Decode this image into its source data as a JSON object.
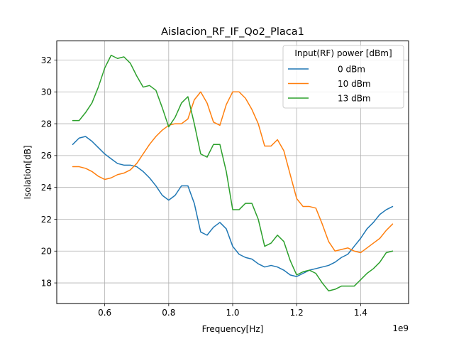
{
  "chart_data": {
    "type": "line",
    "title": "Aislacion_RF_IF_Qo2_Placa1",
    "xlabel": "Frequency[Hz]",
    "ylabel": "Isolation[dB]",
    "x_scale_note": "1e9",
    "xlim": [
      0.45,
      1.55
    ],
    "ylim": [
      16.7,
      33.2
    ],
    "x_ticks": [
      0.6,
      0.8,
      1.0,
      1.2,
      1.4
    ],
    "x_tick_labels": [
      "0.6",
      "0.8",
      "1.0",
      "1.2",
      "1.4"
    ],
    "y_ticks": [
      18,
      20,
      22,
      24,
      26,
      28,
      30,
      32
    ],
    "y_tick_labels": [
      "18",
      "20",
      "22",
      "24",
      "26",
      "28",
      "30",
      "32"
    ],
    "grid": true,
    "legend": {
      "title": "Input(RF) power [dBm]",
      "placement": "upper right"
    },
    "series": [
      {
        "name": "0 dBm",
        "color": "#1f77b4",
        "x": [
          0.5,
          0.52,
          0.54,
          0.56,
          0.58,
          0.6,
          0.62,
          0.64,
          0.66,
          0.68,
          0.7,
          0.72,
          0.74,
          0.76,
          0.78,
          0.8,
          0.82,
          0.84,
          0.86,
          0.88,
          0.9,
          0.92,
          0.94,
          0.96,
          0.98,
          1.0,
          1.02,
          1.04,
          1.06,
          1.08,
          1.1,
          1.12,
          1.14,
          1.16,
          1.18,
          1.2,
          1.22,
          1.24,
          1.26,
          1.28,
          1.3,
          1.32,
          1.34,
          1.36,
          1.38,
          1.4,
          1.42,
          1.44,
          1.46,
          1.48,
          1.5
        ],
        "y": [
          26.7,
          27.1,
          27.2,
          26.9,
          26.5,
          26.1,
          25.8,
          25.5,
          25.4,
          25.4,
          25.3,
          25.0,
          24.6,
          24.1,
          23.5,
          23.2,
          23.5,
          24.1,
          24.1,
          23.0,
          21.2,
          21.0,
          21.5,
          21.8,
          21.4,
          20.3,
          19.8,
          19.6,
          19.5,
          19.2,
          19.0,
          19.1,
          19.0,
          18.8,
          18.5,
          18.4,
          18.6,
          18.8,
          18.9,
          19.0,
          19.1,
          19.3,
          19.6,
          19.8,
          20.3,
          20.8,
          21.4,
          21.8,
          22.3,
          22.6,
          22.8
        ]
      },
      {
        "name": "10 dBm",
        "color": "#ff7f0e",
        "x": [
          0.5,
          0.52,
          0.54,
          0.56,
          0.58,
          0.6,
          0.62,
          0.64,
          0.66,
          0.68,
          0.7,
          0.72,
          0.74,
          0.76,
          0.78,
          0.8,
          0.82,
          0.84,
          0.86,
          0.88,
          0.9,
          0.92,
          0.94,
          0.96,
          0.98,
          1.0,
          1.02,
          1.04,
          1.06,
          1.08,
          1.1,
          1.12,
          1.14,
          1.16,
          1.18,
          1.2,
          1.22,
          1.24,
          1.26,
          1.28,
          1.3,
          1.32,
          1.34,
          1.36,
          1.38,
          1.4,
          1.42,
          1.44,
          1.46,
          1.48,
          1.5
        ],
        "y": [
          25.3,
          25.3,
          25.2,
          25.0,
          24.7,
          24.5,
          24.6,
          24.8,
          24.9,
          25.1,
          25.5,
          26.1,
          26.7,
          27.2,
          27.6,
          27.9,
          28.0,
          28.0,
          28.3,
          29.5,
          30.0,
          29.3,
          28.1,
          27.9,
          29.2,
          30.0,
          30.0,
          29.6,
          28.9,
          28.0,
          26.6,
          26.6,
          27.0,
          26.3,
          24.8,
          23.3,
          22.8,
          22.8,
          22.7,
          21.7,
          20.6,
          20.0,
          20.1,
          20.2,
          20.0,
          19.9,
          20.2,
          20.5,
          20.8,
          21.3,
          21.7
        ]
      },
      {
        "name": "13 dBm",
        "color": "#2ca02c",
        "x": [
          0.5,
          0.52,
          0.54,
          0.56,
          0.58,
          0.6,
          0.62,
          0.64,
          0.66,
          0.68,
          0.7,
          0.72,
          0.74,
          0.76,
          0.78,
          0.8,
          0.82,
          0.84,
          0.86,
          0.88,
          0.9,
          0.92,
          0.94,
          0.96,
          0.98,
          1.0,
          1.02,
          1.04,
          1.06,
          1.08,
          1.1,
          1.12,
          1.14,
          1.16,
          1.18,
          1.2,
          1.22,
          1.24,
          1.26,
          1.28,
          1.3,
          1.32,
          1.34,
          1.36,
          1.38,
          1.4,
          1.42,
          1.44,
          1.46,
          1.48,
          1.5
        ],
        "y": [
          28.2,
          28.2,
          28.7,
          29.3,
          30.3,
          31.5,
          32.3,
          32.1,
          32.2,
          31.8,
          31.0,
          30.3,
          30.4,
          30.1,
          29.0,
          27.8,
          28.4,
          29.3,
          29.7,
          28.0,
          26.1,
          25.9,
          26.7,
          26.7,
          25.0,
          22.6,
          22.6,
          23.0,
          23.0,
          22.0,
          20.3,
          20.5,
          21.0,
          20.6,
          19.4,
          18.5,
          18.7,
          18.8,
          18.6,
          18.0,
          17.5,
          17.6,
          17.8,
          17.8,
          17.8,
          18.2,
          18.6,
          18.9,
          19.3,
          19.9,
          20.0
        ]
      }
    ]
  }
}
